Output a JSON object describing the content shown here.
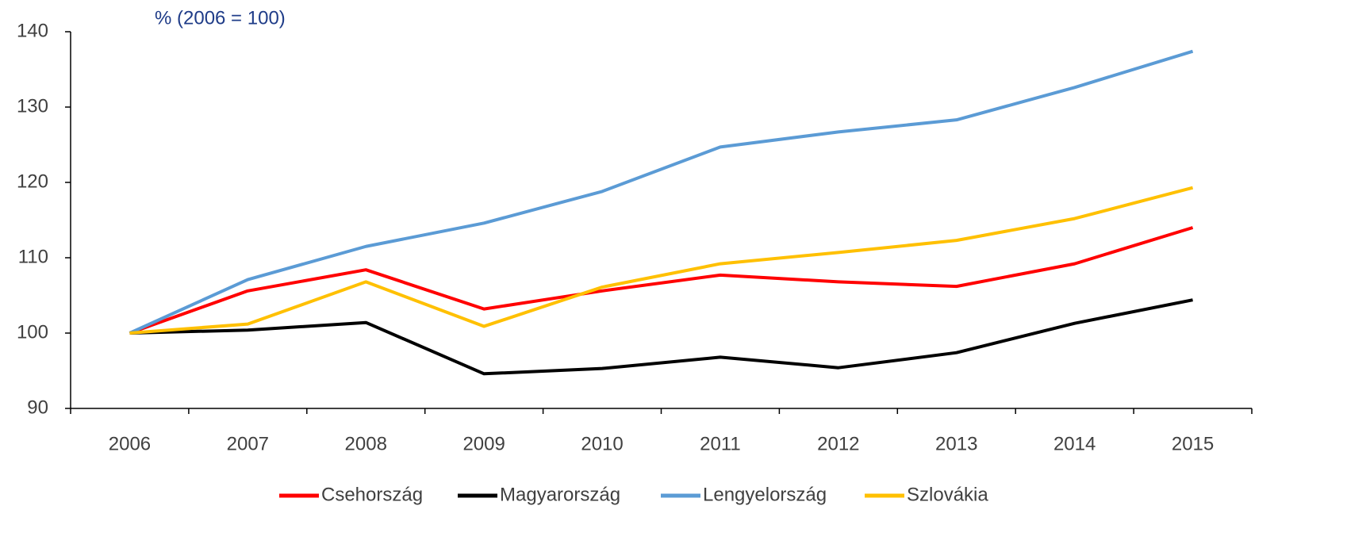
{
  "chart_data": {
    "type": "line",
    "title": "% (2006 = 100)",
    "categories": [
      "2006",
      "2007",
      "2008",
      "2009",
      "2010",
      "2011",
      "2012",
      "2013",
      "2014",
      "2015"
    ],
    "series": [
      {
        "name": "Csehország",
        "color": "#ff0000",
        "values": [
          100,
          105.6,
          108.4,
          103.2,
          105.6,
          107.7,
          106.8,
          106.2,
          109.2,
          114.0
        ]
      },
      {
        "name": "Magyarország",
        "color": "#000000",
        "values": [
          100,
          100.4,
          101.4,
          94.6,
          95.3,
          96.8,
          95.4,
          97.4,
          101.3,
          104.4
        ]
      },
      {
        "name": "Lengyelország",
        "color": "#5b9bd5",
        "values": [
          100,
          107.1,
          111.5,
          114.6,
          118.8,
          124.7,
          126.7,
          128.3,
          132.6,
          137.4
        ]
      },
      {
        "name": "Szlovákia",
        "color": "#ffc000",
        "values": [
          100,
          101.2,
          106.8,
          100.9,
          106.1,
          109.2,
          110.7,
          112.3,
          115.2,
          119.3
        ]
      }
    ],
    "ylim": [
      90,
      140
    ],
    "yticks": [
      90,
      100,
      110,
      120,
      130,
      140
    ],
    "legend": "bottom"
  }
}
